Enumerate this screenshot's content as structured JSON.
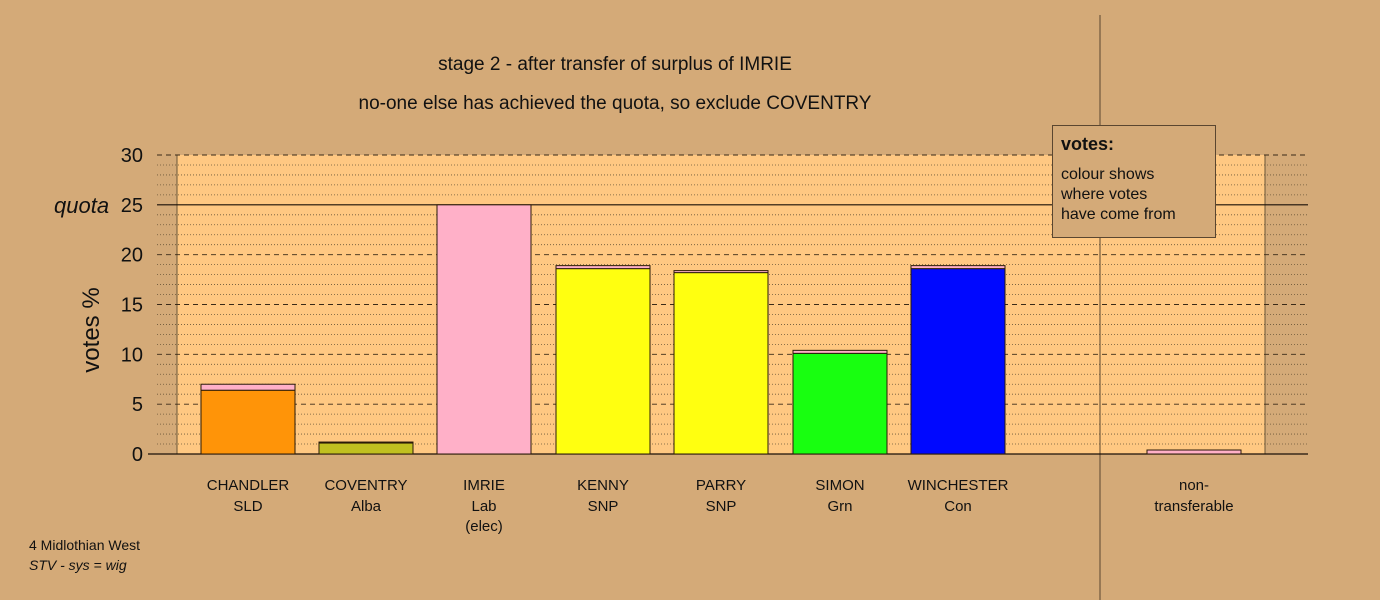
{
  "chart_data": {
    "type": "bar",
    "title": "stage 2 - after transfer of surplus of IMRIE",
    "subtitle": "no-one else has achieved the quota, so exclude COVENTRY",
    "ylabel": "votes %",
    "ylim": [
      0,
      30
    ],
    "yticks": [
      "0",
      "5",
      "10",
      "15",
      "20",
      "25",
      "30"
    ],
    "quota": {
      "label": "quota",
      "value": 25
    },
    "categories": [
      {
        "name": "CHANDLER",
        "party": "SLD",
        "extra": ""
      },
      {
        "name": "COVENTRY",
        "party": "Alba",
        "extra": ""
      },
      {
        "name": "IMRIE",
        "party": "Lab",
        "extra": "(elec)"
      },
      {
        "name": "KENNY",
        "party": "SNP",
        "extra": ""
      },
      {
        "name": "PARRY",
        "party": "SNP",
        "extra": ""
      },
      {
        "name": "SIMON",
        "party": "Grn",
        "extra": ""
      },
      {
        "name": "WINCHESTER",
        "party": "Con",
        "extra": ""
      }
    ],
    "own_votes": [
      6.4,
      1.1,
      25.0,
      18.6,
      18.2,
      10.1,
      18.6
    ],
    "transferred_votes": [
      0.6,
      0.1,
      0.0,
      0.3,
      0.2,
      0.3,
      0.3
    ],
    "bar_colors": [
      "#ff9408",
      "#c0c020",
      "#ffb0c8",
      "#ffff10",
      "#ffff10",
      "#18ff10",
      "#0008ff"
    ],
    "transfer_color": "#ffb0c8",
    "non_transferable": {
      "label1": "non-",
      "label2": "transferable",
      "value": 0.4,
      "color": "#ffb0c8"
    },
    "grid": true
  },
  "legend": {
    "title": "votes:",
    "lines": [
      "colour shows",
      "where votes",
      "have come from"
    ]
  },
  "footer": {
    "line1": "4 Midlothian West",
    "line2": "STV - sys = wig"
  }
}
